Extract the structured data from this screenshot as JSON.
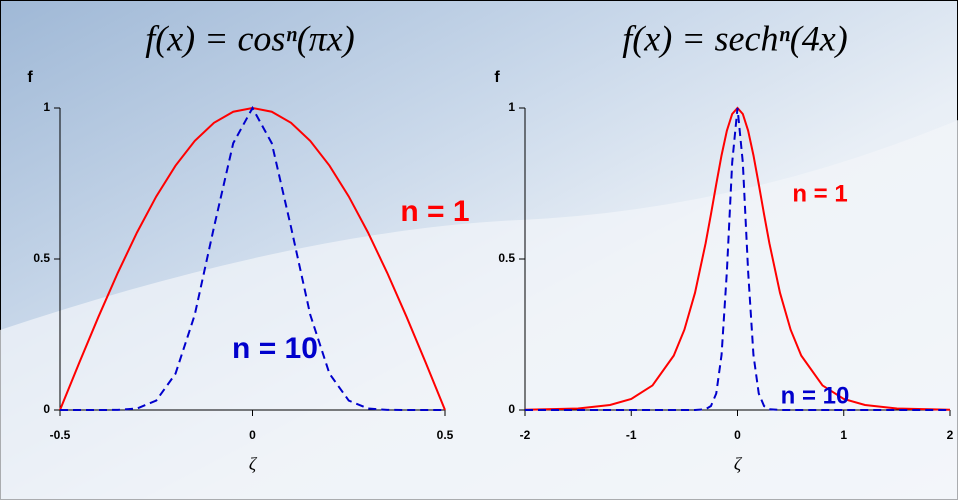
{
  "chart_data": [
    {
      "type": "line",
      "title": "f(x) = cosⁿ(πx)",
      "y_label": "f",
      "x_label": "ζ",
      "xlim": [
        -0.5,
        0.5
      ],
      "ylim": [
        0,
        1
      ],
      "xticks": [
        -0.5,
        0,
        0.5
      ],
      "yticks": [
        0,
        0.5,
        1
      ],
      "x": [
        -0.5,
        -0.45,
        -0.4,
        -0.35,
        -0.3,
        -0.25,
        -0.2,
        -0.15,
        -0.1,
        -0.05,
        0,
        0.05,
        0.1,
        0.15,
        0.2,
        0.25,
        0.3,
        0.35,
        0.4,
        0.45,
        0.5
      ],
      "series": [
        {
          "name": "n = 1",
          "color": "#ff0000",
          "dashed": false,
          "values": [
            0,
            0.1564,
            0.309,
            0.454,
            0.5878,
            0.7071,
            0.809,
            0.891,
            0.9511,
            0.9877,
            1,
            0.9877,
            0.9511,
            0.891,
            0.809,
            0.7071,
            0.5878,
            0.454,
            0.309,
            0.1564,
            0
          ]
        },
        {
          "name": "n = 10",
          "color": "#0000cc",
          "dashed": true,
          "values": [
            0,
            0,
            0,
            0.0004,
            0.0049,
            0.0313,
            0.1201,
            0.3153,
            0.6057,
            0.8836,
            1,
            0.8836,
            0.6057,
            0.3153,
            0.1201,
            0.0313,
            0.0049,
            0.0004,
            0,
            0,
            0
          ]
        }
      ]
    },
    {
      "type": "line",
      "title": "f(x) = sechⁿ(4x)",
      "y_label": "f",
      "x_label": "ζ",
      "xlim": [
        -2,
        2
      ],
      "ylim": [
        0,
        1
      ],
      "xticks": [
        -2,
        -1,
        0,
        1,
        2
      ],
      "yticks": [
        0,
        0.5,
        1
      ],
      "x": [
        -2,
        -1.5,
        -1.2,
        -1,
        -0.8,
        -0.6,
        -0.5,
        -0.4,
        -0.3,
        -0.25,
        -0.2,
        -0.15,
        -0.1,
        -0.05,
        0,
        0.05,
        0.1,
        0.15,
        0.2,
        0.25,
        0.3,
        0.4,
        0.5,
        0.6,
        0.8,
        1,
        1.2,
        1.5,
        2
      ],
      "series": [
        {
          "name": "n = 1",
          "color": "#ff0000",
          "dashed": false,
          "values": [
            0.0007,
            0.005,
            0.0165,
            0.0366,
            0.0814,
            0.18,
            0.2658,
            0.388,
            0.5523,
            0.6481,
            0.7477,
            0.8436,
            0.925,
            0.9803,
            1,
            0.9803,
            0.925,
            0.8436,
            0.7477,
            0.6481,
            0.5523,
            0.388,
            0.2658,
            0.18,
            0.0814,
            0.0366,
            0.0165,
            0.005,
            0.0007
          ]
        },
        {
          "name": "n = 10",
          "color": "#0000cc",
          "dashed": true,
          "values": [
            0,
            0,
            0,
            0,
            0,
            0,
            0,
            0.0001,
            0.0026,
            0.0131,
            0.0546,
            0.1825,
            0.4585,
            0.8196,
            1,
            0.8196,
            0.4585,
            0.1825,
            0.0546,
            0.0131,
            0.0026,
            0.0001,
            0,
            0,
            0,
            0,
            0,
            0,
            0
          ]
        }
      ]
    }
  ]
}
